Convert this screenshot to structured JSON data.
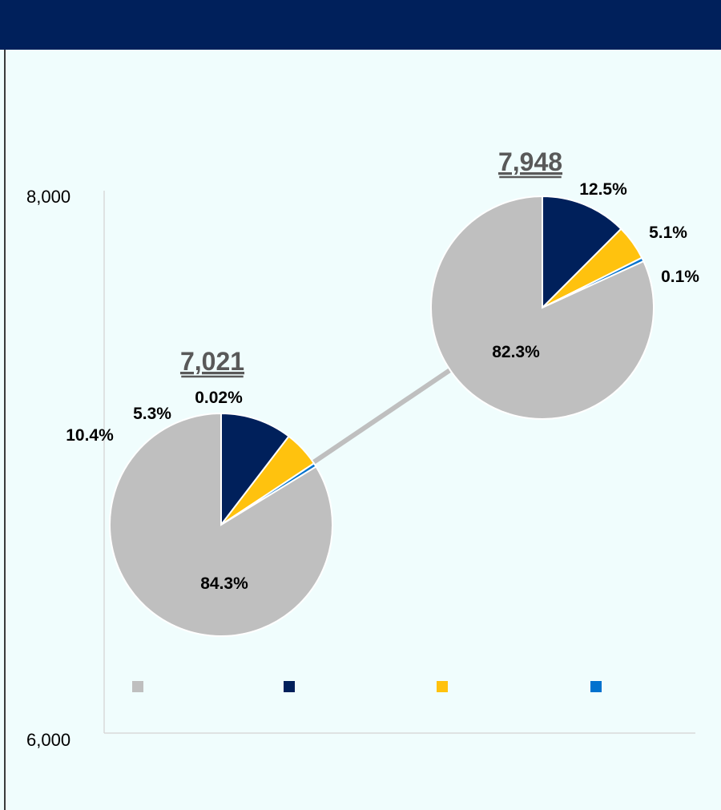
{
  "colors": {
    "header": "#00205b",
    "background": "#f0fdfd",
    "series": [
      "#bfbfbf",
      "#00205b",
      "#ffc20e",
      "#0072ce"
    ]
  },
  "chart_data": {
    "type": "scatter",
    "title": "",
    "xlabel": "",
    "ylabel": "",
    "ylim": [
      6000,
      8000
    ],
    "y_ticks": [
      "8,000",
      "6,000"
    ],
    "legend_placement": "bottom",
    "legend": [
      {
        "color": "#bfbfbf"
      },
      {
        "color": "#00205b"
      },
      {
        "color": "#ffc20e"
      },
      {
        "color": "#0072ce"
      }
    ],
    "points": [
      {
        "total": 7021,
        "total_label": "7,021",
        "slices": [
          {
            "value": 84.3,
            "label": "84.3%"
          },
          {
            "value": 10.4,
            "label": "10.4%"
          },
          {
            "value": 5.3,
            "label": "5.3%"
          },
          {
            "value": 0.02,
            "label": "0.02%"
          }
        ]
      },
      {
        "total": 7948,
        "total_label": "7,948",
        "slices": [
          {
            "value": 82.3,
            "label": "82.3%"
          },
          {
            "value": 12.5,
            "label": "12.5%"
          },
          {
            "value": 5.1,
            "label": "5.1%"
          },
          {
            "value": 0.1,
            "label": "0.1%"
          }
        ]
      }
    ]
  }
}
